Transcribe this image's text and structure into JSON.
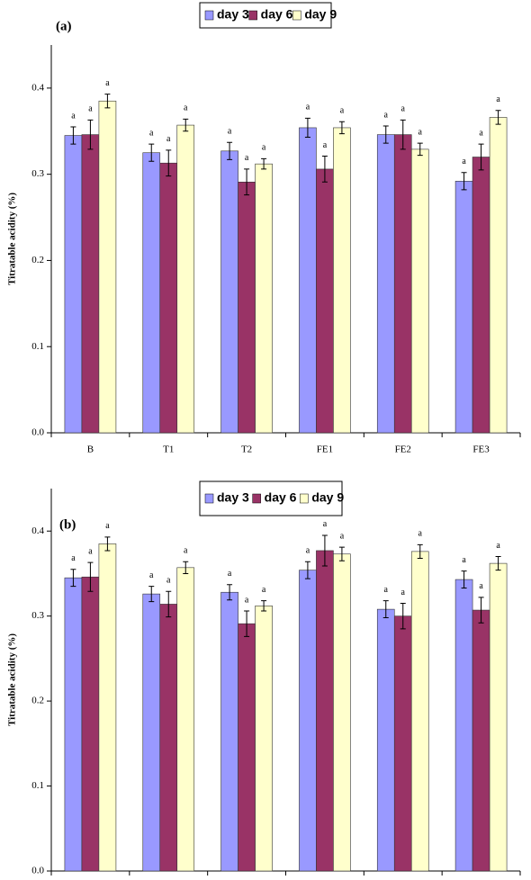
{
  "chart_data": [
    {
      "type": "bar",
      "panel": "(a)",
      "ylabel": "Titratable acidity (%)",
      "categories": [
        "B",
        "T1",
        "T2",
        "FE1",
        "FE2",
        "FE3"
      ],
      "ylim": [
        0,
        0.45
      ],
      "yticks": [
        {
          "value": 0,
          "label": "0.0"
        },
        0.1,
        0.2,
        0.3,
        0.4
      ],
      "series": [
        {
          "name": "day 3",
          "color": "#9999ff",
          "values": [
            0.345,
            0.325,
            0.327,
            0.354,
            0.346,
            0.292
          ],
          "errors": [
            0.01,
            0.01,
            0.01,
            0.011,
            0.01,
            0.01
          ],
          "labels": [
            "a",
            "a",
            "a",
            "a",
            "a",
            "a"
          ]
        },
        {
          "name": "day 6",
          "color": "#993366",
          "values": [
            0.346,
            0.313,
            0.291,
            0.306,
            0.346,
            0.32
          ],
          "errors": [
            0.017,
            0.015,
            0.015,
            0.015,
            0.017,
            0.015
          ],
          "labels": [
            "a",
            "a",
            "a",
            "a",
            "a",
            "a"
          ]
        },
        {
          "name": "day 9",
          "color": "#ffffcc",
          "values": [
            0.385,
            0.357,
            0.312,
            0.354,
            0.329,
            0.366
          ],
          "errors": [
            0.008,
            0.007,
            0.006,
            0.007,
            0.007,
            0.008
          ],
          "labels": [
            "a",
            "a",
            "a",
            "a",
            "a",
            "a"
          ]
        }
      ]
    },
    {
      "type": "bar",
      "panel": "(b)",
      "ylabel": "Titratable acidity (%)",
      "categories": [
        null,
        null,
        null,
        null,
        null,
        null
      ],
      "ylim": [
        0,
        0.45
      ],
      "yticks": [
        {
          "value": 0,
          "label": "0.0"
        },
        0.1,
        0.2,
        0.3,
        0.4
      ],
      "series": [
        {
          "name": "day 3",
          "color": "#9999ff",
          "values": [
            0.345,
            0.326,
            0.328,
            0.354,
            0.308,
            0.343
          ],
          "errors": [
            0.01,
            0.009,
            0.009,
            0.01,
            0.01,
            0.01
          ],
          "labels": [
            "a",
            "a",
            "a",
            "a",
            "a",
            "a"
          ]
        },
        {
          "name": "day 6",
          "color": "#993366",
          "values": [
            0.346,
            0.314,
            0.291,
            0.377,
            0.3,
            0.307
          ],
          "errors": [
            0.017,
            0.015,
            0.015,
            0.018,
            0.015,
            0.015
          ],
          "labels": [
            "a",
            "a",
            "a",
            "a",
            "a",
            "a"
          ]
        },
        {
          "name": "day 9",
          "color": "#ffffcc",
          "values": [
            0.385,
            0.357,
            0.312,
            0.373,
            0.376,
            0.362
          ],
          "errors": [
            0.008,
            0.007,
            0.006,
            0.008,
            0.008,
            0.008
          ],
          "labels": [
            "a",
            "a",
            "a",
            "a",
            "a",
            "a"
          ]
        }
      ]
    }
  ]
}
